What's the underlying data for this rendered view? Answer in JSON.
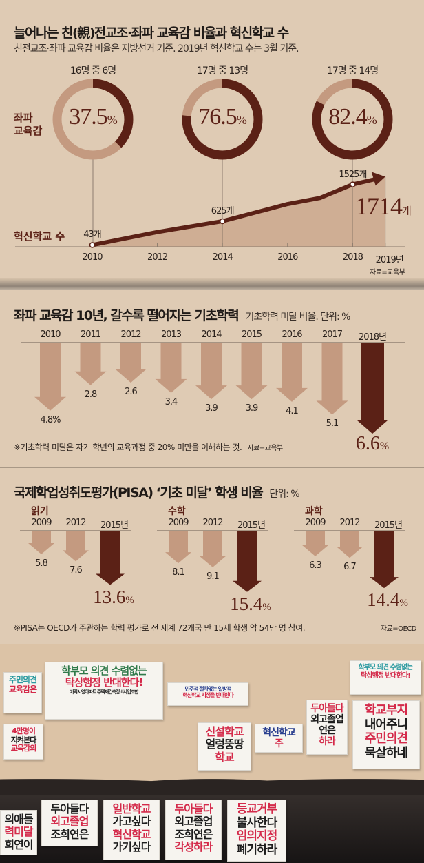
{
  "colors": {
    "background": "#dfcbb4",
    "dark": "#5b2116",
    "light": "#c49a80",
    "area": "#cfae94",
    "photo_bg": "#dcc3a6"
  },
  "section1": {
    "title": "늘어나는 친(親)전교조·좌파 교육감 비율과 혁신학교 수",
    "subtitle": "친전교조·좌파 교육감 비율은 지방선거 기준. 2019년 혁신학교 수는 3월 기준.",
    "donut_label_line1": "좌파",
    "donut_label_line2": "교육감",
    "line_label": "혁신학교 수",
    "source": "자료=교육부"
  },
  "section2": {
    "title": "좌파 교육감 10년, 갈수록 떨어지는 기초학력",
    "unit": "기초학력 미달 비율. 단위: %",
    "footnote": "※기초학력 미달은 자기 학년의 교육과정 중 20% 미만을 이해하는 것.",
    "source": "자료=교육부"
  },
  "section3": {
    "title": "국제학업성취도평가(PISA) ‘기초 미달’ 학생 비율",
    "unit": "단위: %",
    "footnote": "※PISA는 OECD가 주관하는 학력 평가로 전 세계 72개국 만 15세 학생 약 54만 명 참여.",
    "source": "자료=OECD"
  },
  "chart_data": [
    {
      "type": "pie",
      "subtype": "donut",
      "label": "좌파 교육감",
      "items": [
        {
          "caption": "16명 중 6명",
          "value": 37.5,
          "value_label": "37.5",
          "unit": "%"
        },
        {
          "caption": "17명 중 13명",
          "value": 76.5,
          "value_label": "76.5",
          "unit": "%"
        },
        {
          "caption": "17명 중 14명",
          "value": 82.4,
          "value_label": "82.4",
          "unit": "%"
        }
      ]
    },
    {
      "type": "area",
      "label": "혁신학교 수",
      "x": [
        2010,
        2012,
        2014,
        2016,
        2017,
        2018,
        2019
      ],
      "values": [
        43,
        360,
        625,
        1045,
        1195,
        1525,
        1714
      ],
      "tick_labels": [
        "2010",
        "2012",
        "2014",
        "2016",
        "2018",
        "2019년"
      ],
      "tick_values": [
        2010,
        2012,
        2014,
        2016,
        2018,
        2019
      ],
      "data_labels": [
        {
          "x": 2010,
          "text": "43개"
        },
        {
          "x": 2014,
          "text": "625개"
        },
        {
          "x": 2018,
          "text": "1525개"
        }
      ],
      "highlight": {
        "x": 2019,
        "number": "1714",
        "unit": "개"
      },
      "xlim": [
        2010,
        2019
      ]
    },
    {
      "type": "bar",
      "orientation": "down-arrows",
      "categories": [
        "2010",
        "2011",
        "2012",
        "2013",
        "2014",
        "2015",
        "2016",
        "2017",
        "2018년"
      ],
      "values": [
        4.8,
        2.8,
        2.6,
        3.4,
        3.9,
        3.9,
        4.1,
        5.1,
        6.6
      ],
      "value_labels": [
        "4.8%",
        "2.8",
        "2.6",
        "3.4",
        "3.9",
        "3.9",
        "4.1",
        "5.1",
        "6.6"
      ],
      "highlight_unit": "%"
    },
    {
      "type": "bar",
      "orientation": "down-arrows",
      "groups": [
        {
          "name": "읽기",
          "categories": [
            "2009",
            "2012",
            "2015년"
          ],
          "values": [
            5.8,
            7.6,
            13.6
          ],
          "value_labels": [
            "5.8",
            "7.6",
            "13.6"
          ]
        },
        {
          "name": "수학",
          "categories": [
            "2009",
            "2012",
            "2015년"
          ],
          "values": [
            8.1,
            9.1,
            15.4
          ],
          "value_labels": [
            "8.1",
            "9.1",
            "15.4"
          ]
        },
        {
          "name": "과학",
          "categories": [
            "2009",
            "2012",
            "2015년"
          ],
          "values": [
            6.3,
            6.7,
            14.4
          ],
          "value_labels": [
            "6.3",
            "6.7",
            "14.4"
          ]
        }
      ],
      "highlight_unit": "%"
    }
  ],
  "photo": {
    "signs": [
      {
        "lines": [
          "학부모 의견 수렴없는",
          "탁상행정 반대한다!",
          "가락시영아파트 주택재건축정비사업조합"
        ]
      },
      {
        "lines": [
          "주민의견",
          "교육감은"
        ]
      },
      {
        "lines": [
          "학부모 의견 수렴없는",
          "탁상행정 반대한다!"
        ]
      },
      {
        "lines": [
          "혁신학교",
          "주"
        ]
      },
      {
        "lines": [
          "두아들다",
          "외고졸업",
          "연은",
          "하라"
        ]
      },
      {
        "lines": [
          "학교부지",
          "내어주니",
          "주민의견",
          "묵살하네"
        ]
      },
      {
        "lines": [
          "민주적 절차없는 일방적",
          "혁신학교 지정을 반대한다"
        ]
      },
      {
        "lines": [
          "신설학교",
          "얼렁뚱땅",
          "학교"
        ]
      },
      {
        "lines": [
          "일반학교",
          "가고싶다",
          "혁신학교",
          "가기싶다"
        ]
      },
      {
        "lines": [
          "두아들다",
          "외고졸업",
          "조희연은",
          "각성하라"
        ]
      },
      {
        "lines": [
          "두아들다",
          "외고졸업",
          "조희연은"
        ]
      },
      {
        "lines": [
          "등교거부",
          "불사한다",
          "임의지정",
          "폐기하라"
        ]
      },
      {
        "lines": [
          "의애들",
          "력미달",
          "희연이"
        ]
      },
      {
        "lines": [
          "4만명이",
          "지켜본다",
          "교육감의"
        ]
      }
    ]
  }
}
